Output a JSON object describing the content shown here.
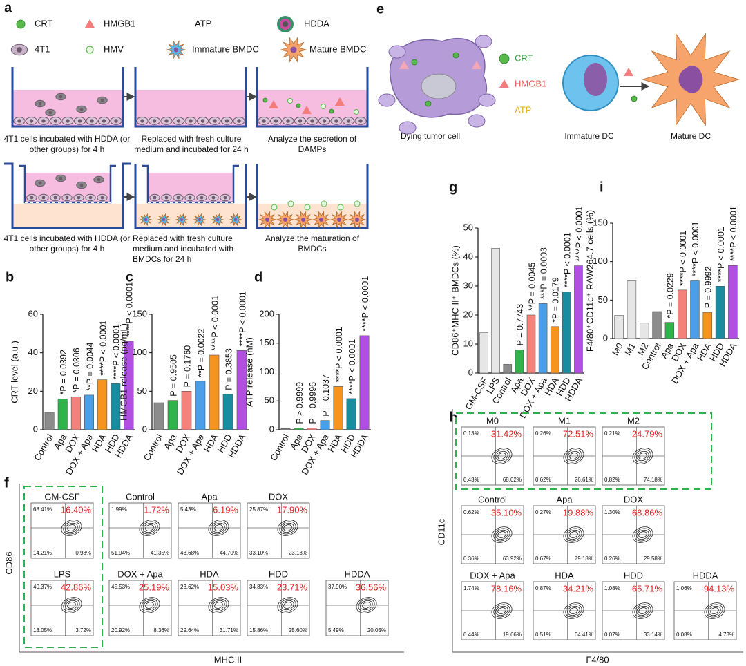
{
  "figure_a": {
    "label": "a",
    "legend": [
      "CRT",
      "HMGB1",
      "ATP",
      "HDDA",
      "4T1",
      "HMV",
      "Immature BMDC",
      "Mature BMDC"
    ],
    "steps_top": [
      "4T1 cells incubated with HDDA (or other groups) for 4 h",
      "Replaced with fresh culture medium and incubated for 24 h",
      "Analyze the secretion of DAMPs"
    ],
    "steps_bottom": [
      "4T1 cells incubated with HDDA (or other groups) for 4 h",
      "Replaced with fresh culture medium and incubated with BMDCs for 24 h",
      "Analyze the maturation of BMDCs"
    ]
  },
  "figure_e": {
    "label": "e",
    "legend": [
      "CRT",
      "HMGB1",
      "ATP"
    ],
    "cells": [
      "Dying tumor cell",
      "Immature DC",
      "Mature DC"
    ]
  },
  "chart_data": [
    {
      "type": "bar",
      "label": "b",
      "y_label": "CRT level (a.u.)",
      "categories": [
        "Control",
        "Apa",
        "DOX",
        "DOX + Apa",
        "HDA",
        "HDD",
        "HDDA"
      ],
      "values": [
        9,
        16,
        17,
        18,
        26,
        24,
        46
      ],
      "colors": [
        "#8c8c8c",
        "#2fb34a",
        "#f4827a",
        "#4a9fe8",
        "#f7941d",
        "#1a8ca0",
        "#b150e0"
      ],
      "annotations": [
        null,
        "*P = 0.0392",
        "*P = 0.0306",
        "**P = 0.0044",
        "****P < 0.0001",
        "****P < 0.0001",
        "****P < 0.0001"
      ],
      "ylim": [
        0,
        60
      ],
      "yticks": [
        0,
        20,
        40,
        60
      ]
    },
    {
      "type": "bar",
      "label": "c",
      "y_label": "HMGB1 release (pg/mL)",
      "categories": [
        "Control",
        "Apa",
        "DOX",
        "DOX + Apa",
        "HDA",
        "HDD",
        "HDDA"
      ],
      "values": [
        35,
        38,
        50,
        63,
        97,
        46,
        103
      ],
      "colors": [
        "#8c8c8c",
        "#2fb34a",
        "#f4827a",
        "#4a9fe8",
        "#f7941d",
        "#1a8ca0",
        "#b150e0"
      ],
      "annotations": [
        null,
        "P = 0.9505",
        "P = 0.1760",
        "**P = 0.0022",
        "****P < 0.0001",
        "P = 0.3853",
        "****P < 0.0001"
      ],
      "ylim": [
        0,
        150
      ],
      "yticks": [
        0,
        50,
        100,
        150
      ]
    },
    {
      "type": "bar",
      "label": "d",
      "y_label": "ATP release (nM)",
      "categories": [
        "Control",
        "Apa",
        "DOX",
        "DOX + Apa",
        "HDA",
        "HDD",
        "HDDA"
      ],
      "values": [
        2,
        3,
        3,
        16,
        75,
        54,
        163
      ],
      "colors": [
        "#8c8c8c",
        "#2fb34a",
        "#f4827a",
        "#4a9fe8",
        "#f7941d",
        "#1a8ca0",
        "#b150e0"
      ],
      "annotations": [
        null,
        "P > 0.9999",
        "P = 0.9996",
        "P = 0.1037",
        "****P < 0.0001",
        "****P < 0.0001",
        "****P < 0.0001"
      ],
      "ylim": [
        0,
        200
      ],
      "yticks": [
        0,
        50,
        100,
        150,
        200
      ]
    },
    {
      "type": "bar",
      "label": "g",
      "y_label": "CD86⁺MHC II⁺ BMDCs (%)",
      "categories": [
        "GM-CSF",
        "LPS",
        "Control",
        "Apa",
        "DOX",
        "DOX + Apa",
        "HDA",
        "HDD",
        "HDDA"
      ],
      "values": [
        14,
        43,
        3,
        8,
        20,
        24,
        16,
        28,
        37
      ],
      "colors": [
        "#e6e6e6",
        "#e6e6e6",
        "#8c8c8c",
        "#2fb34a",
        "#f4827a",
        "#4a9fe8",
        "#f7941d",
        "#1a8ca0",
        "#b150e0"
      ],
      "annotations": [
        null,
        null,
        null,
        "P = 0.7743",
        "**P = 0.0045",
        "***P = 0.0003",
        "*P = 0.0179",
        "****P < 0.0001",
        "****P < 0.0001"
      ],
      "ylim": [
        0,
        50
      ],
      "yticks": [
        0,
        10,
        20,
        30,
        40,
        50
      ]
    },
    {
      "type": "bar",
      "label": "i",
      "y_label": "F4/80⁺CD11c⁺ RAW264.7 cells (%)",
      "categories": [
        "M0",
        "M1",
        "M2",
        "Control",
        "Apa",
        "DOX",
        "DOX + Apa",
        "HDA",
        "HDD",
        "HDDA"
      ],
      "values": [
        30,
        75,
        20,
        35,
        21,
        63,
        75,
        34,
        68,
        95
      ],
      "colors": [
        "#e6e6e6",
        "#e6e6e6",
        "#e6e6e6",
        "#8c8c8c",
        "#2fb34a",
        "#f4827a",
        "#4a9fe8",
        "#f7941d",
        "#1a8ca0",
        "#b150e0"
      ],
      "annotations": [
        null,
        null,
        null,
        null,
        "*P = 0.0229",
        "****P < 0.0001",
        "****P < 0.0001",
        "P = 0.9992",
        "****P < 0.0001",
        "****P < 0.0001"
      ],
      "ylim": [
        0,
        150
      ],
      "yticks": [
        0,
        50,
        100,
        150
      ]
    }
  ],
  "figure_f": {
    "label": "f",
    "y_axis": "CD86",
    "x_axis": "MHC II",
    "plots": [
      {
        "name": "GM-CSF",
        "q1": "68.41%",
        "q2": "16.40%",
        "q3": "14.21%",
        "q4": "0.98%"
      },
      {
        "name": "Control",
        "q1": "1.99%",
        "q2": "1.72%",
        "q3": "51.94%",
        "q4": "41.35%"
      },
      {
        "name": "Apa",
        "q1": "5.43%",
        "q2": "6.19%",
        "q3": "43.68%",
        "q4": "44.70%"
      },
      {
        "name": "DOX",
        "q1": "25.87%",
        "q2": "17.90%",
        "q3": "33.10%",
        "q4": "23.13%"
      },
      {
        "name": "LPS",
        "q1": "40.37%",
        "q2": "42.86%",
        "q3": "13.05%",
        "q4": "3.72%"
      },
      {
        "name": "DOX + Apa",
        "q1": "45.53%",
        "q2": "25.19%",
        "q3": "20.92%",
        "q4": "8.36%"
      },
      {
        "name": "HDA",
        "q1": "23.62%",
        "q2": "15.03%",
        "q3": "29.64%",
        "q4": "31.71%"
      },
      {
        "name": "HDD",
        "q1": "34.83%",
        "q2": "23.71%",
        "q3": "15.86%",
        "q4": "25.60%"
      },
      {
        "name": "HDDA",
        "q1": "37.90%",
        "q2": "36.56%",
        "q3": "5.49%",
        "q4": "20.05%"
      }
    ]
  },
  "figure_h": {
    "label": "h",
    "y_axis": "CD11c",
    "x_axis": "F4/80",
    "plots": [
      {
        "name": "M0",
        "q1": "0.13%",
        "q2": "31.42%",
        "q3": "0.43%",
        "q4": "68.02%"
      },
      {
        "name": "M1",
        "q1": "0.26%",
        "q2": "72.51%",
        "q3": "0.62%",
        "q4": "26.61%"
      },
      {
        "name": "M2",
        "q1": "0.21%",
        "q2": "24.79%",
        "q3": "0.82%",
        "q4": "74.18%"
      },
      {
        "name": "Control",
        "q1": "0.62%",
        "q2": "35.10%",
        "q3": "0.36%",
        "q4": "63.92%"
      },
      {
        "name": "Apa",
        "q1": "0.27%",
        "q2": "19.88%",
        "q3": "0.67%",
        "q4": "79.18%"
      },
      {
        "name": "DOX",
        "q1": "1.30%",
        "q2": "68.86%",
        "q3": "0.26%",
        "q4": "29.58%"
      },
      {
        "name": "DOX + Apa",
        "q1": "1.74%",
        "q2": "78.16%",
        "q3": "0.44%",
        "q4": "19.66%"
      },
      {
        "name": "HDA",
        "q1": "0.87%",
        "q2": "34.21%",
        "q3": "0.51%",
        "q4": "64.41%"
      },
      {
        "name": "HDD",
        "q1": "1.08%",
        "q2": "65.71%",
        "q3": "0.07%",
        "q4": "33.14%"
      },
      {
        "name": "HDDA",
        "q1": "1.06%",
        "q2": "94.13%",
        "q3": "0.08%",
        "q4": "4.73%"
      }
    ]
  }
}
